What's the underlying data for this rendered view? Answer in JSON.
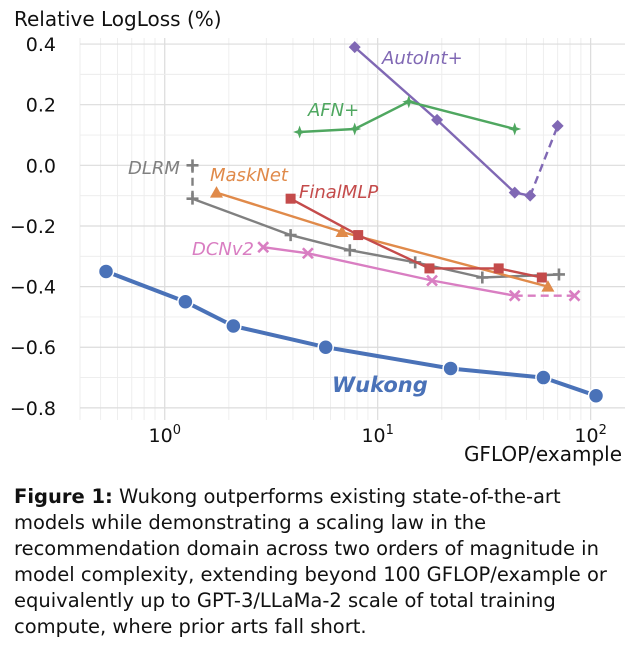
{
  "chart_data": {
    "type": "line",
    "ylabel": "Relative LogLoss (%)",
    "xlabel": "GFLOP/example",
    "x_scale": "log",
    "xlim": [
      0.4,
      145
    ],
    "ylim": [
      -0.84,
      0.42
    ],
    "x_ticks": [
      1,
      10,
      100
    ],
    "x_tick_labels": [
      {
        "base": "10",
        "exp": "0"
      },
      {
        "base": "10",
        "exp": "1"
      },
      {
        "base": "10",
        "exp": "2"
      }
    ],
    "y_ticks": [
      0.4,
      0.2,
      0.0,
      -0.2,
      -0.4,
      -0.6,
      -0.8
    ],
    "y_tick_labels": [
      "0.4",
      "0.2",
      "0.0",
      "−0.2",
      "−0.4",
      "−0.6",
      "−0.8"
    ],
    "grid": true,
    "series": [
      {
        "name": "Wukong",
        "color": "#4a72b8",
        "marker": "circle",
        "bold": true,
        "x": [
          0.53,
          1.25,
          2.1,
          5.7,
          22,
          60,
          106
        ],
        "y": [
          -0.35,
          -0.45,
          -0.53,
          -0.6,
          -0.67,
          -0.7,
          -0.76
        ]
      },
      {
        "name": "AutoInt+",
        "color": "#8068b4",
        "marker": "diamond",
        "x": [
          7.8,
          19,
          44,
          52
        ],
        "y": [
          0.39,
          0.15,
          -0.09,
          -0.1
        ],
        "dashed_x": [
          52,
          70
        ],
        "dashed_y": [
          -0.1,
          0.13
        ]
      },
      {
        "name": "AFN+",
        "color": "#4fa760",
        "marker": "star",
        "x": [
          4.3,
          7.8,
          14,
          44
        ],
        "y": [
          0.11,
          0.12,
          0.21,
          0.12
        ]
      },
      {
        "name": "DLRM",
        "color": "#808080",
        "marker": "plus",
        "x": [
          1.35,
          3.9,
          7.4,
          15,
          31,
          71
        ],
        "y": [
          -0.11,
          -0.23,
          -0.28,
          -0.32,
          -0.37,
          -0.36
        ],
        "dashed_x": [
          1.35,
          1.35
        ],
        "dashed_y": [
          -0.11,
          0.0
        ]
      },
      {
        "name": "MaskNet",
        "color": "#e08a4a",
        "marker": "triangle",
        "x": [
          1.75,
          6.8,
          63
        ],
        "y": [
          -0.09,
          -0.22,
          -0.4
        ]
      },
      {
        "name": "FinalMLP",
        "color": "#c44b4b",
        "marker": "square",
        "x": [
          3.9,
          8.1,
          17.5,
          37,
          59
        ],
        "y": [
          -0.11,
          -0.23,
          -0.34,
          -0.34,
          -0.37
        ]
      },
      {
        "name": "DCNv2",
        "color": "#d97ec2",
        "marker": "cross",
        "x": [
          2.9,
          4.7,
          18,
          44
        ],
        "y": [
          -0.27,
          -0.29,
          -0.38,
          -0.43
        ],
        "dashed_x": [
          44,
          84
        ],
        "dashed_y": [
          -0.43,
          -0.43
        ]
      }
    ]
  },
  "caption": {
    "label": "Figure 1:",
    "text": "Wukong outperforms existing state-of-the-art models while demonstrating a scaling law in the recommendation domain across two orders of magnitude in model complexity, extending beyond 100 GFLOP/example or equivalently up to GPT-3/LLaMa-2 scale of total training compute, where prior arts fall short."
  }
}
